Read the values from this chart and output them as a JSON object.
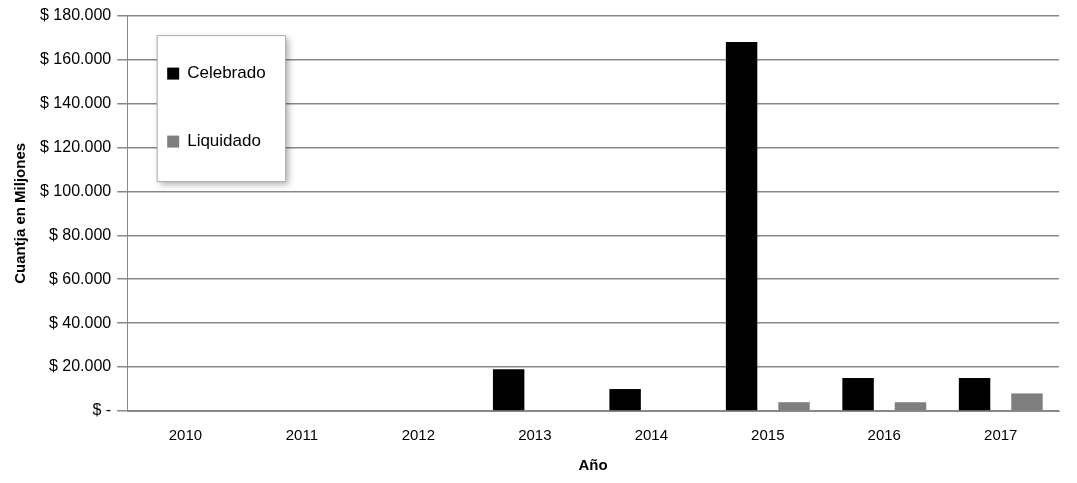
{
  "chart_data": {
    "type": "bar",
    "xlabel": "Año",
    "ylabel": "Cuantja en Miljones",
    "categories": [
      "2010",
      "2011",
      "2012",
      "2013",
      "2014",
      "2015",
      "2016",
      "2017"
    ],
    "series": [
      {
        "name": "Celebrado",
        "color": "#000000",
        "values": [
          0,
          0,
          0,
          19000,
          10000,
          168000,
          15000,
          15000
        ]
      },
      {
        "name": "Liquidado",
        "color": "#7f7f7f",
        "values": [
          0,
          0,
          0,
          0,
          0,
          4000,
          4000,
          8000
        ]
      }
    ],
    "ylim": [
      0,
      180000
    ],
    "yticks": [
      {
        "value": 0,
        "label": "$ -"
      },
      {
        "value": 20000,
        "label": "$ 20.000"
      },
      {
        "value": 40000,
        "label": "$ 40.000"
      },
      {
        "value": 60000,
        "label": "$ 60.000"
      },
      {
        "value": 80000,
        "label": "$ 80.000"
      },
      {
        "value": 100000,
        "label": "$ 100.000"
      },
      {
        "value": 120000,
        "label": "$ 120.000"
      },
      {
        "value": 140000,
        "label": "$ 140.000"
      },
      {
        "value": 160000,
        "label": "$ 160.000"
      },
      {
        "value": 180000,
        "label": "$ 180.000"
      }
    ],
    "grid": "y",
    "legend": "top left"
  }
}
